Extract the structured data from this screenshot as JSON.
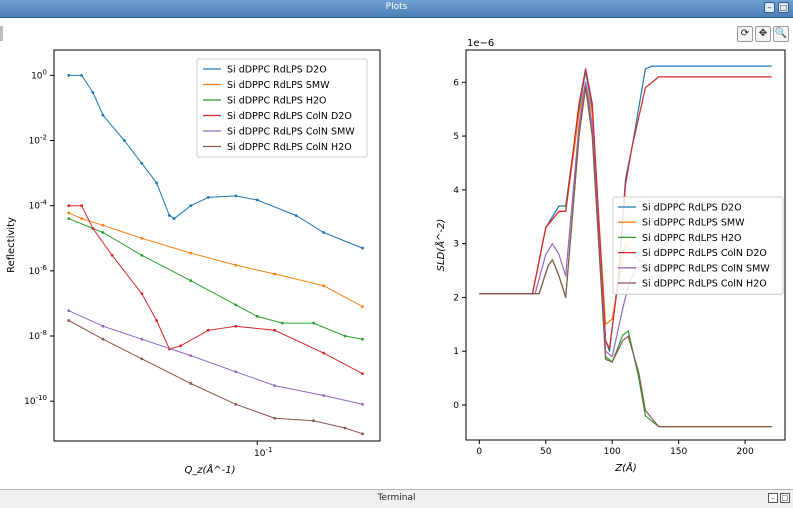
{
  "window": {
    "title": "Plots",
    "minimize_icon": "minimize-icon",
    "maximize_icon": "maximize-icon"
  },
  "toolbar": {
    "refresh_icon": "refresh-icon",
    "pan_icon": "pan-move-icon",
    "zoom_icon": "zoom-icon"
  },
  "terminal": {
    "title": "Terminal"
  },
  "colors": {
    "blue": "#1f77b4",
    "orange": "#ff7f0e",
    "green": "#2ca02c",
    "red": "#d62728",
    "purple": "#9467bd",
    "brown": "#8c564b"
  },
  "chart_data": [
    {
      "type": "line",
      "xlabel": "Q_z(Å^-1)",
      "ylabel": "Reflectivity",
      "xscale": "log",
      "yscale": "log",
      "xlim": [
        0.012,
        0.36
      ],
      "ylim": [
        6e-12,
        6
      ],
      "x_ticks": [
        {
          "v": 0.1,
          "label": "10^-1"
        }
      ],
      "y_ticks": [
        {
          "v": 1,
          "label": "10^0"
        },
        {
          "v": 0.01,
          "label": "10^-2"
        },
        {
          "v": 0.0001,
          "label": "10^-4"
        },
        {
          "v": 1e-06,
          "label": "10^-6"
        },
        {
          "v": 1e-08,
          "label": "10^-8"
        },
        {
          "v": 1e-10,
          "label": "10^-10"
        }
      ],
      "legend_position": "top-right",
      "series": [
        {
          "name": "Si dDPPC RdLPS D2O",
          "color": "#1f77b4",
          "points": [
            [
              0.014,
              1.0
            ],
            [
              0.016,
              1.0
            ],
            [
              0.018,
              0.3
            ],
            [
              0.02,
              0.06
            ],
            [
              0.025,
              0.01
            ],
            [
              0.03,
              0.002
            ],
            [
              0.035,
              0.0005
            ],
            [
              0.04,
              5e-05
            ],
            [
              0.042,
              4e-05
            ],
            [
              0.05,
              0.0001
            ],
            [
              0.06,
              0.00018
            ],
            [
              0.08,
              0.0002
            ],
            [
              0.1,
              0.00015
            ],
            [
              0.15,
              5e-05
            ],
            [
              0.2,
              1.5e-05
            ],
            [
              0.3,
              5e-06
            ]
          ]
        },
        {
          "name": "Si dDPPC RdLPS SMW",
          "color": "#ff7f0e",
          "points": [
            [
              0.014,
              6e-05
            ],
            [
              0.016,
              4e-05
            ],
            [
              0.02,
              2.5e-05
            ],
            [
              0.03,
              1e-05
            ],
            [
              0.05,
              3.5e-06
            ],
            [
              0.08,
              1.5e-06
            ],
            [
              0.12,
              8e-07
            ],
            [
              0.2,
              3.5e-07
            ],
            [
              0.3,
              8e-08
            ]
          ]
        },
        {
          "name": "Si dDPPC RdLPS H2O",
          "color": "#2ca02c",
          "points": [
            [
              0.014,
              4e-05
            ],
            [
              0.02,
              1.5e-05
            ],
            [
              0.03,
              3e-06
            ],
            [
              0.05,
              5e-07
            ],
            [
              0.08,
              9e-08
            ],
            [
              0.1,
              4e-08
            ],
            [
              0.13,
              2.5e-08
            ],
            [
              0.18,
              2.5e-08
            ],
            [
              0.25,
              1e-08
            ],
            [
              0.3,
              8e-09
            ]
          ]
        },
        {
          "name": "Si dDPPC RdLPS ColN D2O",
          "color": "#d62728",
          "points": [
            [
              0.014,
              0.0001
            ],
            [
              0.016,
              0.0001
            ],
            [
              0.018,
              2e-05
            ],
            [
              0.022,
              3e-06
            ],
            [
              0.03,
              2e-07
            ],
            [
              0.035,
              3e-08
            ],
            [
              0.04,
              4e-09
            ],
            [
              0.045,
              5e-09
            ],
            [
              0.06,
              1.5e-08
            ],
            [
              0.08,
              2e-08
            ],
            [
              0.12,
              1.5e-08
            ],
            [
              0.2,
              3e-09
            ],
            [
              0.3,
              7e-10
            ]
          ]
        },
        {
          "name": "Si dDPPC RdLPS ColN SMW",
          "color": "#9467bd",
          "points": [
            [
              0.014,
              6e-08
            ],
            [
              0.02,
              2e-08
            ],
            [
              0.03,
              8e-09
            ],
            [
              0.05,
              2.5e-09
            ],
            [
              0.08,
              8e-10
            ],
            [
              0.12,
              3e-10
            ],
            [
              0.2,
              1.5e-10
            ],
            [
              0.3,
              8e-11
            ]
          ]
        },
        {
          "name": "Si dDPPC RdLPS ColN H2O",
          "color": "#8c564b",
          "points": [
            [
              0.014,
              3e-08
            ],
            [
              0.02,
              8e-09
            ],
            [
              0.03,
              2e-09
            ],
            [
              0.05,
              3.5e-10
            ],
            [
              0.08,
              8e-11
            ],
            [
              0.12,
              3e-11
            ],
            [
              0.18,
              2.5e-11
            ],
            [
              0.25,
              1.5e-11
            ],
            [
              0.3,
              1e-11
            ]
          ]
        }
      ]
    },
    {
      "type": "line",
      "xlabel": "Z(Å)",
      "ylabel": "SLD(Å^-2)",
      "offset_text": "1e−6",
      "xlim": [
        -10,
        230
      ],
      "ylim": [
        -0.65,
        6.6
      ],
      "x_ticks": [
        0,
        50,
        100,
        150,
        200
      ],
      "y_ticks": [
        0,
        1,
        2,
        3,
        4,
        5,
        6
      ],
      "legend_position": "center-right",
      "series": [
        {
          "name": "Si dDPPC RdLPS D2O",
          "color": "#1f77b4",
          "points": [
            [
              0,
              2.07
            ],
            [
              40,
              2.07
            ],
            [
              50,
              3.3
            ],
            [
              60,
              3.7
            ],
            [
              65,
              3.7
            ],
            [
              75,
              5.5
            ],
            [
              80,
              6.2
            ],
            [
              85,
              5.5
            ],
            [
              95,
              1.2
            ],
            [
              98,
              1.0
            ],
            [
              105,
              2.5
            ],
            [
              110,
              4.2
            ],
            [
              115,
              4.8
            ],
            [
              125,
              6.25
            ],
            [
              130,
              6.3
            ],
            [
              220,
              6.3
            ]
          ]
        },
        {
          "name": "Si dDPPC RdLPS SMW",
          "color": "#ff7f0e",
          "points": [
            [
              0,
              2.07
            ],
            [
              40,
              2.07
            ],
            [
              50,
              3.3
            ],
            [
              60,
              3.6
            ],
            [
              65,
              3.6
            ],
            [
              75,
              5.4
            ],
            [
              80,
              6.0
            ],
            [
              85,
              5.4
            ],
            [
              95,
              1.5
            ],
            [
              100,
              1.6
            ],
            [
              110,
              3.0
            ],
            [
              120,
              2.7
            ],
            [
              130,
              2.6
            ],
            [
              220,
              2.6
            ]
          ]
        },
        {
          "name": "Si dDPPC RdLPS H2O",
          "color": "#2ca02c",
          "points": [
            [
              0,
              2.07
            ],
            [
              45,
              2.07
            ],
            [
              52,
              2.6
            ],
            [
              55,
              2.7
            ],
            [
              60,
              2.4
            ],
            [
              65,
              2.0
            ],
            [
              75,
              5.0
            ],
            [
              80,
              5.95
            ],
            [
              85,
              5.0
            ],
            [
              95,
              0.9
            ],
            [
              100,
              0.8
            ],
            [
              108,
              1.3
            ],
            [
              112,
              1.38
            ],
            [
              120,
              0.5
            ],
            [
              125,
              -0.2
            ],
            [
              135,
              -0.4
            ],
            [
              220,
              -0.4
            ]
          ]
        },
        {
          "name": "Si dDPPC RdLPS ColN D2O",
          "color": "#d62728",
          "points": [
            [
              0,
              2.07
            ],
            [
              40,
              2.07
            ],
            [
              50,
              3.3
            ],
            [
              60,
              3.6
            ],
            [
              65,
              3.6
            ],
            [
              75,
              5.6
            ],
            [
              80,
              6.25
            ],
            [
              85,
              5.6
            ],
            [
              95,
              1.2
            ],
            [
              98,
              1.05
            ],
            [
              105,
              2.4
            ],
            [
              110,
              4.1
            ],
            [
              115,
              4.8
            ],
            [
              125,
              5.9
            ],
            [
              135,
              6.1
            ],
            [
              220,
              6.1
            ]
          ]
        },
        {
          "name": "Si dDPPC RdLPS ColN SMW",
          "color": "#9467bd",
          "points": [
            [
              0,
              2.07
            ],
            [
              42,
              2.07
            ],
            [
              50,
              2.8
            ],
            [
              55,
              3.0
            ],
            [
              60,
              2.8
            ],
            [
              65,
              2.4
            ],
            [
              75,
              5.2
            ],
            [
              80,
              6.0
            ],
            [
              85,
              5.2
            ],
            [
              95,
              1.0
            ],
            [
              100,
              0.9
            ],
            [
              108,
              1.8
            ],
            [
              112,
              2.2
            ],
            [
              118,
              2.55
            ],
            [
              130,
              2.6
            ],
            [
              220,
              2.6
            ]
          ]
        },
        {
          "name": "Si dDPPC RdLPS ColN H2O",
          "color": "#8c564b",
          "points": [
            [
              0,
              2.07
            ],
            [
              45,
              2.07
            ],
            [
              52,
              2.6
            ],
            [
              55,
              2.7
            ],
            [
              60,
              2.4
            ],
            [
              65,
              2.0
            ],
            [
              75,
              5.0
            ],
            [
              80,
              5.9
            ],
            [
              85,
              5.0
            ],
            [
              95,
              0.85
            ],
            [
              100,
              0.8
            ],
            [
              108,
              1.2
            ],
            [
              112,
              1.28
            ],
            [
              120,
              0.6
            ],
            [
              125,
              -0.1
            ],
            [
              135,
              -0.4
            ],
            [
              220,
              -0.4
            ]
          ]
        }
      ]
    }
  ]
}
